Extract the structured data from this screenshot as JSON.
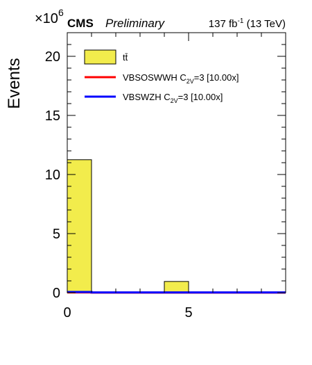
{
  "header": {
    "cms": "CMS",
    "preliminary": "Preliminary",
    "lumi_value": "137 fb",
    "lumi_exp": "-1",
    "lumi_energy": " (13 TeV)"
  },
  "chart_data": {
    "type": "bar",
    "title": "",
    "xlabel": "",
    "ylabel": "Events",
    "y_multiplier": {
      "base": "×10",
      "exponent": "6"
    },
    "xlim": [
      0,
      9
    ],
    "ylim": [
      0,
      22
    ],
    "x_ticks": [
      0,
      5
    ],
    "y_ticks": [
      0,
      5,
      10,
      15,
      20
    ],
    "bin_edges": [
      0,
      1,
      2,
      3,
      4,
      5,
      6,
      7,
      8,
      9
    ],
    "series": [
      {
        "name": "tt̄",
        "style": "filled-histogram",
        "color": "#f2ec4c",
        "edge_color": "#000000",
        "values": [
          11.25,
          0,
          0,
          0,
          0.95,
          0,
          0,
          0,
          0
        ]
      },
      {
        "name": "VBSOSWWH C2V=3 [10.00x]",
        "style": "line-histogram",
        "color": "#ff0000",
        "values": [
          0.02,
          0.01,
          0.01,
          0.01,
          0.01,
          0.01,
          0.01,
          0.01,
          0.01
        ]
      },
      {
        "name": "VBSWZH C2V=3 [10.00x]",
        "style": "line-histogram",
        "color": "#0000ff",
        "values": [
          0.06,
          0.02,
          0.02,
          0.02,
          0.02,
          0.02,
          0.02,
          0.02,
          0.02
        ]
      }
    ],
    "legend": {
      "placement": "top-left",
      "entries": [
        {
          "kind": "box",
          "color": "#f2ec4c",
          "label_main": "tt̄",
          "label_sub": "",
          "label_tail": ""
        },
        {
          "kind": "line",
          "color": "#ff0000",
          "label_main": "VBSOSWWH C",
          "label_sub": "2V",
          "label_tail": "=3 [10.00x]"
        },
        {
          "kind": "line",
          "color": "#0000ff",
          "label_main": "VBSWZH C",
          "label_sub": "2V",
          "label_tail": "=3 [10.00x]"
        }
      ]
    },
    "grid": false
  }
}
